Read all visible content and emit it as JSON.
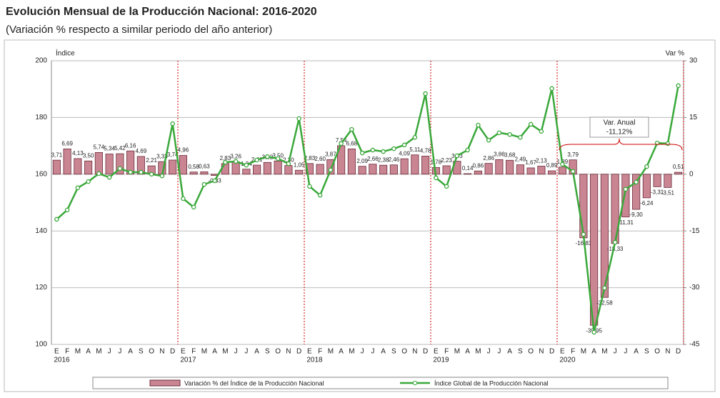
{
  "chart_data": {
    "type": "bar_line",
    "title": "Evolución Mensual de la Producción Nacional: 2016-2020",
    "subtitle": "(Variación % respecto a similar periodo del año anterior)",
    "y_label": "Índice",
    "y2_label": "Var %",
    "categories": [
      "E",
      "F",
      "M",
      "A",
      "M",
      "J",
      "J",
      "A",
      "S",
      "O",
      "N",
      "D",
      "E",
      "F",
      "M",
      "A",
      "M",
      "J",
      "J",
      "A",
      "S",
      "O",
      "N",
      "D",
      "E",
      "F",
      "M",
      "A",
      "M",
      "J",
      "J",
      "A",
      "S",
      "O",
      "N",
      "D",
      "E",
      "F",
      "M",
      "A",
      "M",
      "J",
      "J",
      "A",
      "S",
      "O",
      "N",
      "D",
      "E",
      "F",
      "M",
      "A",
      "M",
      "J",
      "J",
      "A",
      "S",
      "O",
      "N",
      "D"
    ],
    "years": [
      "2016",
      "2017",
      "2018",
      "2019",
      "2020"
    ],
    "series": [
      {
        "name": "Variación % del Índice de la Producción Nacional",
        "color": "#c98592",
        "axis": "y2",
        "values": [
          3.71,
          6.69,
          4.13,
          3.5,
          5.74,
          5.34,
          5.42,
          6.16,
          4.69,
          2.21,
          3.33,
          3.74,
          4.96,
          0.58,
          0.63,
          -0.33,
          2.83,
          3.26,
          1.34,
          2.41,
          3.12,
          3.5,
          2.3,
          1.05,
          2.83,
          2.6,
          3.87,
          7.54,
          6.68,
          2.09,
          2.66,
          2.38,
          2.46,
          4.09,
          5.11,
          4.78,
          1.78,
          2.23,
          3.43,
          0.14,
          0.86,
          2.86,
          3.86,
          3.68,
          2.49,
          1.67,
          2.13,
          0.89,
          1.89,
          3.79,
          -16.83,
          -39.95,
          -32.58,
          -18.33,
          -11.31,
          -9.3,
          -6.24,
          -3.31,
          -3.51,
          0.51
        ],
        "value_labels": [
          "3,71",
          "6,69",
          "4,13",
          "3,50",
          "5,74",
          "5,34",
          "5,42",
          "6,16",
          "4,69",
          "2,21",
          "3,33",
          "3,74",
          "4,96",
          "0,58",
          "0,63",
          "-0,33",
          "2,83",
          "3,26",
          "1,34",
          "2,41",
          "3,12",
          "3,50",
          "2,30",
          "1,05",
          "2,83",
          "2,60",
          "3,87",
          "7,54",
          "6,68",
          "2,09",
          "2,66",
          "2,38",
          "2,46",
          "4,09",
          "5,11",
          "4,78",
          "1,78",
          "2,23",
          "3,43",
          "0,14",
          "0,86",
          "2,86",
          "3,86",
          "3,68",
          "2,49",
          "1,67",
          "2,13",
          "0,89",
          "1,89",
          "3,79",
          "-16,83",
          "-39,95",
          "-32,58",
          "-18,33",
          "-11,31",
          "-9,30",
          "-6,24",
          "-3,31",
          "-3,51",
          "0,51"
        ]
      },
      {
        "name": "Índice Global de la Producción Nacional",
        "color": "#3aa83a",
        "axis": "y",
        "values": [
          144.1,
          147.4,
          155.2,
          157.4,
          160.2,
          158.9,
          162.0,
          160.7,
          160.7,
          160.0,
          159.4,
          177.8,
          151.4,
          148.4,
          156.4,
          157.7,
          164.2,
          164.5,
          163.2,
          165.0,
          166.2,
          165.5,
          163.7,
          179.6,
          155.7,
          152.6,
          161.5,
          170.8,
          175.8,
          167.5,
          168.5,
          168.0,
          169.0,
          170.3,
          173.0,
          188.4,
          158.7,
          155.7,
          166.5,
          168.5,
          177.3,
          172.0,
          174.6,
          174.0,
          173.0,
          177.6,
          175.1,
          190.2,
          163.5,
          161.0,
          138.8,
          104.3,
          119.9,
          136.0,
          154.7,
          157.2,
          162.7,
          171.0,
          170.8,
          191.2
        ]
      }
    ],
    "annotation": [
      "Var. Anual",
      "-11,12%"
    ],
    "ylim": [
      100,
      200
    ],
    "yticks": [
      100,
      120,
      140,
      160,
      180,
      200
    ],
    "y2lim": [
      -45,
      30
    ],
    "y2ticks": [
      -45,
      -30,
      -15,
      0,
      15,
      30
    ],
    "grid": true,
    "legend": "bottom"
  }
}
